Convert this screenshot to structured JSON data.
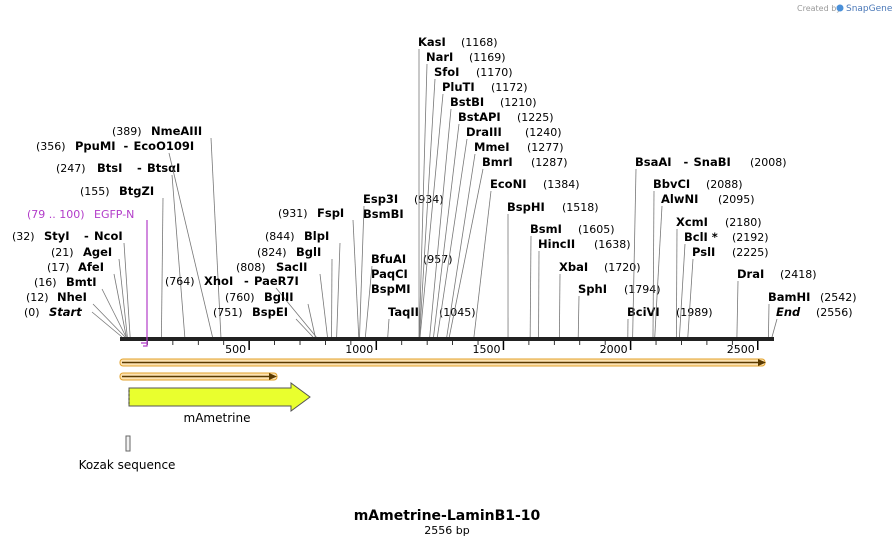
{
  "credit": {
    "prefix": "Created by",
    "brand": "SnapGene"
  },
  "map": {
    "title": "mAmetrine-LaminB1-10",
    "length_label": "2556 bp",
    "length": 2556
  },
  "ticks": [
    {
      "pos": 500,
      "label": "500"
    },
    {
      "pos": 1000,
      "label": "1000"
    },
    {
      "pos": 1500,
      "label": "1500"
    },
    {
      "pos": 2000,
      "label": "2000"
    },
    {
      "pos": 2500,
      "label": "2500"
    }
  ],
  "primer": {
    "name": "EGFP-N",
    "range": "(79 .. 100)",
    "start": 79,
    "end": 100
  },
  "features": [
    {
      "name": "mAmetrine",
      "start": 30,
      "end": 750,
      "type": "cds"
    },
    {
      "name": "Kozak sequence",
      "start": 20,
      "end": 30,
      "type": "misc"
    }
  ],
  "sites_left": [
    {
      "name": "Start",
      "pos_label": "(0)",
      "pos": 0,
      "italic": true
    },
    {
      "name": "NheI",
      "pos_label": "(12)",
      "pos": 12
    },
    {
      "name": "BmtI",
      "pos_label": "(16)",
      "pos": 16
    },
    {
      "name": "AfeI",
      "pos_label": "(17)",
      "pos": 17
    },
    {
      "name": "AgeI",
      "pos_label": "(21)",
      "pos": 21
    },
    {
      "name": "StyI",
      "name2": "NcoI",
      "pos_label": "(32)",
      "pos": 32
    },
    {
      "name": "BtgZI",
      "pos_label": "(155)",
      "pos": 155
    },
    {
      "name": "BtsI",
      "name2": "BtsαI",
      "pos_label": "(247)",
      "pos": 247
    },
    {
      "name": "PpuMI",
      "name2": "EcoO109I",
      "pos_label": "(356)",
      "pos": 356
    },
    {
      "name": "NmeAIII",
      "pos_label": "(389)",
      "pos": 389
    },
    {
      "name": "XhoI",
      "name2": "PaeR7I",
      "pos_label": "(764)",
      "pos": 764
    },
    {
      "name": "BspEI",
      "pos_label": "(751)",
      "pos": 751
    },
    {
      "name": "BglII",
      "pos_label": "(760)",
      "pos": 760
    },
    {
      "name": "SacII",
      "pos_label": "(808)",
      "pos": 808
    },
    {
      "name": "BglI",
      "pos_label": "(824)",
      "pos": 824
    },
    {
      "name": "BlpI",
      "pos_label": "(844)",
      "pos": 844
    },
    {
      "name": "FspI",
      "pos_label": "(931)",
      "pos": 931
    }
  ],
  "sites_mid": [
    {
      "name": "Esp3I",
      "name2": "BsmBI",
      "pos_label": "(934)",
      "pos": 934
    },
    {
      "name": "BfuAI",
      "name2": "PaqCI",
      "name3": "BspMI",
      "pos_label": "(957)",
      "pos": 957
    },
    {
      "name": "TaqII",
      "pos_label": "(1045)",
      "pos": 1045
    },
    {
      "name": "KasI",
      "pos_label": "(1168)",
      "pos": 1168
    },
    {
      "name": "NarI",
      "pos_label": "(1169)",
      "pos": 1169
    },
    {
      "name": "SfoI",
      "pos_label": "(1170)",
      "pos": 1170
    },
    {
      "name": "PluTI",
      "pos_label": "(1172)",
      "pos": 1172
    },
    {
      "name": "BstBI",
      "pos_label": "(1210)",
      "pos": 1210
    },
    {
      "name": "BstAPI",
      "pos_label": "(1225)",
      "pos": 1225
    },
    {
      "name": "DraIII",
      "pos_label": "(1240)",
      "pos": 1240
    },
    {
      "name": "MmeI",
      "pos_label": "(1277)",
      "pos": 1277
    },
    {
      "name": "BmrI",
      "pos_label": "(1287)",
      "pos": 1287
    }
  ],
  "sites_right": [
    {
      "name": "EcoNI",
      "pos_label": "(1384)",
      "pos": 1384
    },
    {
      "name": "BspHI",
      "pos_label": "(1518)",
      "pos": 1518
    },
    {
      "name": "BsmI",
      "pos_label": "(1605)",
      "pos": 1605
    },
    {
      "name": "HincII",
      "pos_label": "(1638)",
      "pos": 1638
    },
    {
      "name": "XbaI",
      "pos_label": "(1720)",
      "pos": 1720
    },
    {
      "name": "SphI",
      "pos_label": "(1794)",
      "pos": 1794
    },
    {
      "name": "BciVI",
      "pos_label": "(1989)",
      "pos": 1989
    },
    {
      "name": "BsaAI",
      "name2": "SnaBI",
      "pos_label": "(2008)",
      "pos": 2008
    },
    {
      "name": "BbvCI",
      "pos_label": "(2088)",
      "pos": 2088
    },
    {
      "name": "AlwNI",
      "pos_label": "(2095)",
      "pos": 2095
    },
    {
      "name": "XcmI",
      "pos_label": "(2180)",
      "pos": 2180
    },
    {
      "name": "BclI *",
      "pos_label": "(2192)",
      "pos": 2192
    },
    {
      "name": "PslI",
      "pos_label": "(2225)",
      "pos": 2225
    },
    {
      "name": "DraI",
      "pos_label": "(2418)",
      "pos": 2418
    },
    {
      "name": "BamHI",
      "pos_label": "(2542)",
      "pos": 2542
    },
    {
      "name": "End",
      "pos_label": "(2556)",
      "pos": 2556,
      "italic": true
    }
  ],
  "colors": {
    "primer": "#b23cc9",
    "cds_fill": "#e9ff2e",
    "orf_fill": "#f5a623",
    "backbone": "#222222",
    "brand": "#1a74c9"
  }
}
